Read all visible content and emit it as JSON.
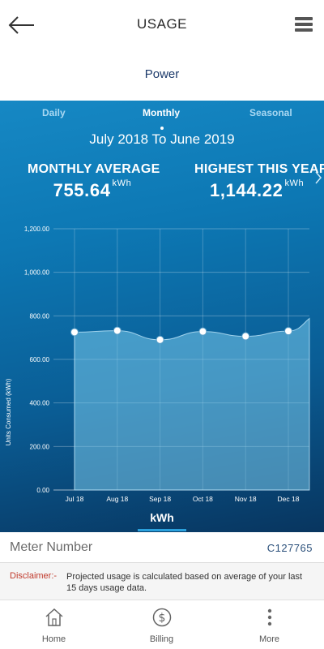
{
  "header": {
    "title": "USAGE"
  },
  "subheader": {
    "label": "Power"
  },
  "tabs": [
    {
      "label": "Daily",
      "active": false
    },
    {
      "label": "Monthly",
      "active": true
    },
    {
      "label": "Seasonal",
      "active": false
    }
  ],
  "range": {
    "text": "July 2018 To June 2019"
  },
  "stats": {
    "average": {
      "label": "MONTHLY AVERAGE",
      "value": "755.64",
      "unit": "kWh"
    },
    "highest": {
      "label": "HIGHEST THIS YEAR",
      "value": "1,144.22",
      "unit": "kWh"
    }
  },
  "unit_tab": {
    "label": "kWh"
  },
  "meter": {
    "label": "Meter Number",
    "value": "C127765"
  },
  "disclaimer": {
    "label": "Disclaimer:-",
    "text": "Projected usage is calculated based on average of your last 15 days usage data."
  },
  "nav": [
    {
      "label": "Home",
      "icon": "home-icon"
    },
    {
      "label": "Billing",
      "icon": "billing-icon"
    },
    {
      "label": "More",
      "icon": "more-icon"
    }
  ],
  "colors": {
    "accent": "#1688c4",
    "title": "#1c3a6b",
    "disclaimer": "#c0392b"
  },
  "chart_data": {
    "type": "area",
    "ylabel": "Units Consumed (kWh)",
    "xlabel": "",
    "ylim": [
      0,
      1200
    ],
    "yticks": [
      "0.00",
      "200.00",
      "400.00",
      "600.00",
      "800.00",
      "1,000.00",
      "1,200.00"
    ],
    "categories": [
      "Jul 18",
      "Aug 18",
      "Sep 18",
      "Oct 18",
      "Nov 18",
      "Dec 18"
    ],
    "values": [
      725,
      732,
      690,
      728,
      706,
      730
    ],
    "grid": true,
    "legend": "none"
  }
}
